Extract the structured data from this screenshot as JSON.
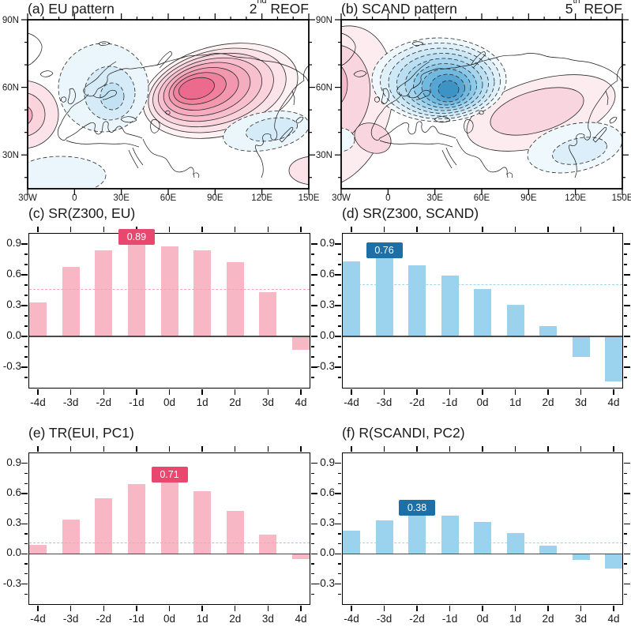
{
  "palette": {
    "positive_fill_strongest": "#EC6B8C",
    "negative_fill_strongest": "#3E93C5",
    "bar_pink": "#F8B7C4",
    "bar_blue": "#9BD2EE",
    "badge_pink": "#E8486E",
    "badge_blue": "#1D6FA8",
    "threshold_pink": "#F5A3B8",
    "threshold_blue": "#9FD3EE",
    "contour_line": "#2B2B2B",
    "zero_line": "#4A4A4A"
  },
  "chart_data": [
    {
      "id": "a",
      "type": "contour_map",
      "title_full": "(a) EU pattern",
      "corner": {
        "ordinal": "2",
        "suffix": "nd",
        "word": "REOF"
      },
      "lat_labels": [
        "90N",
        "60N",
        "30N"
      ],
      "lon_labels": [
        "30W",
        "0",
        "30E",
        "60E",
        "90E",
        "120E",
        "150E"
      ],
      "lon_range": [
        "30W",
        "150E"
      ],
      "lat_range": [
        "15N",
        "90N"
      ],
      "anomaly_centers": [
        {
          "sign": "positive",
          "approx_location": "75E, 60N (west Siberia)",
          "strength": "strong, ~8 contour levels, solid contours"
        },
        {
          "sign": "positive",
          "approx_location": "30W, 47N (NE Atlantic, cut by left edge)",
          "strength": "moderate"
        },
        {
          "sign": "negative",
          "approx_location": "15E, 62N (Scandinavia)",
          "strength": "weak, dashed contours"
        },
        {
          "sign": "negative",
          "approx_location": "120E, 40N (near Japan)",
          "strength": "weak, dashed contours"
        },
        {
          "sign": "negative",
          "approx_location": "15W, 22N (bottom-left)",
          "strength": "weak, dashed contours"
        },
        {
          "sign": "positive",
          "approx_location": "150E, 25N (bottom-right edge)",
          "strength": "weak"
        }
      ]
    },
    {
      "id": "b",
      "type": "contour_map",
      "title_full": "(b) SCAND pattern",
      "corner": {
        "ordinal": "5",
        "suffix": "th",
        "word": "REOF"
      },
      "lat_labels": [
        "90N",
        "60N",
        "30N"
      ],
      "lon_labels": [
        "30W",
        "0",
        "30E",
        "60E",
        "90E",
        "120E",
        "150E"
      ],
      "lon_range": [
        "30W",
        "150E"
      ],
      "lat_range": [
        "15N",
        "90N"
      ],
      "anomaly_centers": [
        {
          "sign": "negative",
          "approx_location": "38E, 60N (Scandinavia / NW Russia)",
          "strength": "strong, ~9 dashed contour levels"
        },
        {
          "sign": "positive",
          "approx_location": "30W, 55N sweeping SE over W Europe (cut by left edge)",
          "strength": "moderate, solid contours"
        },
        {
          "sign": "positive",
          "approx_location": "90E, 50N (central Asia)",
          "strength": "moderate, solid contours"
        },
        {
          "sign": "negative",
          "approx_location": "112E, 30N (near Japan)",
          "strength": "weak, dashed contours"
        },
        {
          "sign": "negative",
          "approx_location": "30W, 34N (left edge)",
          "strength": "weak"
        }
      ]
    },
    {
      "id": "c",
      "type": "bar",
      "title_full": "(c) SR(Z300, EU)",
      "categories": [
        "-4d",
        "-3d",
        "-2d",
        "-1d",
        "0d",
        "1d",
        "2d",
        "3d",
        "4d"
      ],
      "values": [
        0.33,
        0.68,
        0.84,
        0.89,
        0.88,
        0.84,
        0.72,
        0.43,
        -0.13
      ],
      "ylim": [
        -0.5,
        1.0
      ],
      "yticks": [
        0.9,
        0.6,
        0.3,
        0.0,
        -0.3
      ],
      "ytick_labels": [
        "0.9",
        "0.6",
        "0.3",
        "0.0",
        "-0.3"
      ],
      "threshold_line": 0.46,
      "badge": {
        "index": 3,
        "category": "-1d",
        "label": "0.89"
      },
      "colors": {
        "bar": "#F8B7C4",
        "badge": "#E8486E",
        "threshold": "#F5A3B8"
      }
    },
    {
      "id": "d",
      "type": "bar",
      "title_full": "(d) SR(Z300, SCAND)",
      "categories": [
        "-4d",
        "-3d",
        "-2d",
        "-1d",
        "0d",
        "1d",
        "2d",
        "3d",
        "4d"
      ],
      "values": [
        0.73,
        0.76,
        0.69,
        0.59,
        0.46,
        0.31,
        0.1,
        -0.2,
        -0.44
      ],
      "ylim": [
        -0.5,
        1.0
      ],
      "yticks": [
        0.9,
        0.6,
        0.3,
        0.0,
        -0.3
      ],
      "ytick_labels": [
        "0.9",
        "0.6",
        "0.3",
        "0.0",
        "-0.3"
      ],
      "threshold_line": 0.51,
      "badge": {
        "index": 1,
        "category": "-3d",
        "label": "0.76"
      },
      "colors": {
        "bar": "#9BD2EE",
        "badge": "#1D6FA8",
        "threshold": "#9FD3EE"
      }
    },
    {
      "id": "e",
      "type": "bar",
      "title_full": "(e) TR(EUI, PC1)",
      "categories": [
        "-4d",
        "-3d",
        "-2d",
        "-1d",
        "0d",
        "1d",
        "2d",
        "3d",
        "4d"
      ],
      "values": [
        0.09,
        0.34,
        0.55,
        0.69,
        0.71,
        0.62,
        0.43,
        0.19,
        -0.05
      ],
      "ylim": [
        -0.5,
        1.0
      ],
      "yticks": [
        0.9,
        0.6,
        0.3,
        0.0,
        -0.3
      ],
      "ytick_labels": [
        "0.9",
        "0.6",
        "0.3",
        "0.0",
        "-0.3"
      ],
      "threshold_line": 0.11,
      "badge": {
        "index": 4,
        "category": "0d",
        "label": "0.71"
      },
      "colors": {
        "bar": "#F8B7C4",
        "badge": "#E8486E",
        "threshold": "#F5A3B8"
      }
    },
    {
      "id": "f",
      "type": "bar",
      "title_full": "(f) R(SCANDI, PC2)",
      "categories": [
        "-4d",
        "-3d",
        "-2d",
        "-1d",
        "0d",
        "1d",
        "2d",
        "3d",
        "4d"
      ],
      "values": [
        0.23,
        0.33,
        0.38,
        0.38,
        0.32,
        0.21,
        0.08,
        -0.06,
        -0.15
      ],
      "ylim": [
        -0.5,
        1.0
      ],
      "yticks": [
        0.9,
        0.6,
        0.3,
        0.0,
        -0.3
      ],
      "ytick_labels": [
        "0.9",
        "0.6",
        "0.3",
        "0.0",
        "-0.3"
      ],
      "threshold_line": 0.11,
      "badge": {
        "index": 2,
        "category": "-2d",
        "label": "0.38"
      },
      "colors": {
        "bar": "#9BD2EE",
        "badge": "#1D6FA8",
        "threshold": "#9FD3EE"
      }
    }
  ]
}
